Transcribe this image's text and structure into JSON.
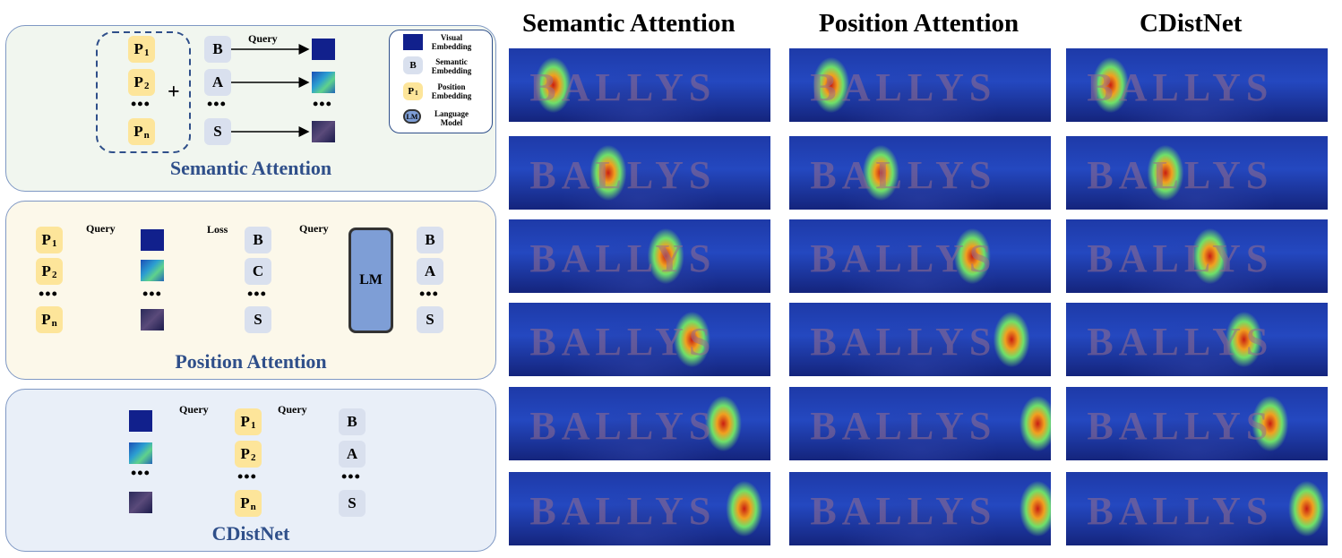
{
  "labels": {
    "query": "Query",
    "loss": "Loss",
    "dots": "•••",
    "plus": "+",
    "lm": "LM"
  },
  "legend": {
    "visual": "Visual Embedding",
    "semantic_tok": "B",
    "semantic": "Semantic Embedding",
    "position_tok": "P",
    "position_sub": "1",
    "position": "Position Embedding",
    "lm_tok": "LM",
    "lm": "Language Model"
  },
  "panels": {
    "semantic": {
      "title": "Semantic Attention",
      "chars": [
        "B",
        "A",
        "S"
      ]
    },
    "position": {
      "title": "Position Attention",
      "in_chars": [
        "B",
        "C",
        "S"
      ],
      "out_chars": [
        "B",
        "A",
        "S"
      ]
    },
    "cdistnet": {
      "title": "CDistNet",
      "chars": [
        "B",
        "A",
        "S"
      ]
    }
  },
  "tokens": {
    "p": "P",
    "sub1": "1",
    "sub2": "2",
    "subn": "n"
  },
  "columns": [
    "Semantic Attention",
    "Position Attention",
    "CDistNet"
  ],
  "heatmap_word": "BALLYS",
  "colors": {
    "panel_semantic_bg": "#f1f6ef",
    "panel_position_bg": "#fcf8ea",
    "panel_cdistnet_bg": "#e9eff8",
    "title_color": "#2f4f8a",
    "position_token": "#fde59a",
    "semantic_token": "#d9e0ee",
    "visual_embedding": "#11208c",
    "lm_fill": "#7e9ed6"
  }
}
